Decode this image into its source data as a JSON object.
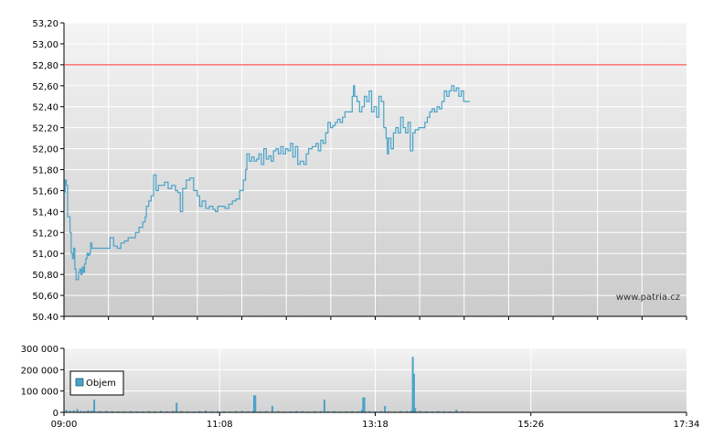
{
  "chart_data": [
    {
      "type": "line",
      "name": "price",
      "y_ticks": [
        "53,20",
        "53,00",
        "52,80",
        "52,60",
        "52,40",
        "52,20",
        "52,00",
        "51,80",
        "51,60",
        "51,40",
        "51,20",
        "51,00",
        "50,80",
        "50,60",
        "50.40"
      ],
      "y_values": [
        53.2,
        53.0,
        52.8,
        52.6,
        52.4,
        52.2,
        52.0,
        51.8,
        51.6,
        51.4,
        51.2,
        51.0,
        50.8,
        50.6,
        50.4
      ],
      "ylim": [
        50.4,
        53.2
      ],
      "xlim_minutes": [
        540,
        1054
      ],
      "reference_line": {
        "value": 52.8,
        "color": "#ff3333"
      },
      "line_color": "#4aa3c8",
      "grid": true,
      "watermark": "www.patria.cz",
      "points": [
        [
          540,
          51.58
        ],
        [
          541,
          51.7
        ],
        [
          542,
          51.65
        ],
        [
          543,
          51.35
        ],
        [
          544,
          51.35
        ],
        [
          545,
          51.2
        ],
        [
          546,
          51.0
        ],
        [
          547,
          50.95
        ],
        [
          548,
          51.05
        ],
        [
          549,
          50.85
        ],
        [
          550,
          50.75
        ],
        [
          551,
          50.75
        ],
        [
          552,
          50.82
        ],
        [
          553,
          50.85
        ],
        [
          554,
          50.8
        ],
        [
          555,
          50.87
        ],
        [
          556,
          50.82
        ],
        [
          557,
          50.9
        ],
        [
          558,
          50.95
        ],
        [
          559,
          51.0
        ],
        [
          560,
          50.98
        ],
        [
          561,
          51.0
        ],
        [
          562,
          51.1
        ],
        [
          563,
          51.05
        ],
        [
          566,
          51.05
        ],
        [
          570,
          51.05
        ],
        [
          575,
          51.05
        ],
        [
          578,
          51.15
        ],
        [
          581,
          51.07
        ],
        [
          584,
          51.05
        ],
        [
          587,
          51.1
        ],
        [
          590,
          51.12
        ],
        [
          593,
          51.15
        ],
        [
          596,
          51.15
        ],
        [
          599,
          51.2
        ],
        [
          602,
          51.25
        ],
        [
          605,
          51.3
        ],
        [
          607,
          51.35
        ],
        [
          608,
          51.45
        ],
        [
          610,
          51.5
        ],
        [
          612,
          51.55
        ],
        [
          614,
          51.75
        ],
        [
          616,
          51.6
        ],
        [
          618,
          51.65
        ],
        [
          620,
          51.65
        ],
        [
          623,
          51.68
        ],
        [
          626,
          51.62
        ],
        [
          629,
          51.65
        ],
        [
          632,
          51.6
        ],
        [
          634,
          51.58
        ],
        [
          636,
          51.4
        ],
        [
          638,
          51.62
        ],
        [
          641,
          51.7
        ],
        [
          644,
          51.72
        ],
        [
          647,
          51.6
        ],
        [
          650,
          51.55
        ],
        [
          652,
          51.45
        ],
        [
          654,
          51.5
        ],
        [
          657,
          51.43
        ],
        [
          660,
          51.45
        ],
        [
          663,
          51.42
        ],
        [
          665,
          51.4
        ],
        [
          667,
          51.45
        ],
        [
          670,
          51.45
        ],
        [
          673,
          51.43
        ],
        [
          676,
          51.47
        ],
        [
          679,
          51.5
        ],
        [
          682,
          51.52
        ],
        [
          685,
          51.6
        ],
        [
          688,
          51.7
        ],
        [
          690,
          51.8
        ],
        [
          691,
          51.95
        ],
        [
          693,
          51.88
        ],
        [
          695,
          51.92
        ],
        [
          697,
          51.88
        ],
        [
          699,
          51.9
        ],
        [
          701,
          51.95
        ],
        [
          703,
          51.85
        ],
        [
          705,
          52.0
        ],
        [
          707,
          51.9
        ],
        [
          709,
          51.93
        ],
        [
          711,
          51.88
        ],
        [
          713,
          51.98
        ],
        [
          715,
          52.0
        ],
        [
          717,
          51.95
        ],
        [
          719,
          52.02
        ],
        [
          721,
          51.95
        ],
        [
          723,
          52.0
        ],
        [
          725,
          51.98
        ],
        [
          727,
          52.05
        ],
        [
          729,
          51.92
        ],
        [
          731,
          52.02
        ],
        [
          733,
          51.85
        ],
        [
          735,
          51.88
        ],
        [
          738,
          51.85
        ],
        [
          740,
          51.95
        ],
        [
          742,
          52.0
        ],
        [
          745,
          52.02
        ],
        [
          748,
          52.05
        ],
        [
          750,
          51.98
        ],
        [
          752,
          52.08
        ],
        [
          754,
          52.05
        ],
        [
          756,
          52.15
        ],
        [
          758,
          52.25
        ],
        [
          760,
          52.2
        ],
        [
          762,
          52.22
        ],
        [
          764,
          52.25
        ],
        [
          766,
          52.28
        ],
        [
          768,
          52.25
        ],
        [
          770,
          52.3
        ],
        [
          772,
          52.35
        ],
        [
          774,
          52.35
        ],
        [
          776,
          52.35
        ],
        [
          778,
          52.5
        ],
        [
          779,
          52.6
        ],
        [
          780,
          52.5
        ],
        [
          782,
          52.45
        ],
        [
          784,
          52.35
        ],
        [
          786,
          52.4
        ],
        [
          788,
          52.5
        ],
        [
          790,
          52.45
        ],
        [
          792,
          52.55
        ],
        [
          794,
          52.35
        ],
        [
          796,
          52.4
        ],
        [
          798,
          52.3
        ],
        [
          800,
          52.5
        ],
        [
          802,
          52.45
        ],
        [
          804,
          52.2
        ],
        [
          806,
          52.1
        ],
        [
          807,
          51.95
        ],
        [
          808,
          52.1
        ],
        [
          810,
          52.0
        ],
        [
          812,
          52.15
        ],
        [
          814,
          52.2
        ],
        [
          816,
          52.15
        ],
        [
          818,
          52.3
        ],
        [
          820,
          52.2
        ],
        [
          822,
          52.15
        ],
        [
          824,
          52.25
        ],
        [
          826,
          51.98
        ],
        [
          828,
          52.15
        ],
        [
          830,
          52.18
        ],
        [
          833,
          52.2
        ],
        [
          836,
          52.2
        ],
        [
          838,
          52.25
        ],
        [
          840,
          52.3
        ],
        [
          842,
          52.35
        ],
        [
          844,
          52.38
        ],
        [
          846,
          52.35
        ],
        [
          848,
          52.4
        ],
        [
          850,
          52.38
        ],
        [
          852,
          52.45
        ],
        [
          854,
          52.55
        ],
        [
          856,
          52.5
        ],
        [
          858,
          52.55
        ],
        [
          860,
          52.6
        ],
        [
          862,
          52.55
        ],
        [
          864,
          52.58
        ],
        [
          866,
          52.5
        ],
        [
          868,
          52.55
        ],
        [
          870,
          52.45
        ],
        [
          875,
          52.45
        ]
      ]
    },
    {
      "type": "bar",
      "name": "volume",
      "legend": "Objem",
      "y_ticks": [
        "300 000",
        "200 000",
        "100 000",
        "0"
      ],
      "ylim": [
        0,
        300000
      ],
      "x_ticks": [
        "09:00",
        "11:08",
        "13:18",
        "15:26",
        "17:34"
      ],
      "bar_color": "#4aa3c8",
      "grid": true,
      "bars": [
        [
          542,
          12000
        ],
        [
          545,
          8000
        ],
        [
          548,
          9000
        ],
        [
          551,
          15000
        ],
        [
          554,
          7000
        ],
        [
          557,
          6000
        ],
        [
          560,
          10000
        ],
        [
          563,
          8000
        ],
        [
          565,
          60000
        ],
        [
          570,
          6000
        ],
        [
          575,
          7000
        ],
        [
          580,
          5000
        ],
        [
          585,
          4000
        ],
        [
          590,
          5000
        ],
        [
          595,
          6000
        ],
        [
          600,
          5000
        ],
        [
          605,
          4000
        ],
        [
          610,
          6000
        ],
        [
          615,
          5000
        ],
        [
          620,
          7000
        ],
        [
          625,
          5000
        ],
        [
          630,
          6000
        ],
        [
          633,
          45000
        ],
        [
          637,
          6000
        ],
        [
          642,
          5000
        ],
        [
          647,
          4000
        ],
        [
          652,
          6000
        ],
        [
          657,
          8000
        ],
        [
          662,
          5000
        ],
        [
          667,
          6000
        ],
        [
          672,
          5000
        ],
        [
          677,
          4000
        ],
        [
          682,
          6000
        ],
        [
          687,
          7000
        ],
        [
          692,
          5000
        ],
        [
          696,
          6000
        ],
        [
          697,
          80000
        ],
        [
          698,
          80000
        ],
        [
          702,
          5000
        ],
        [
          707,
          6000
        ],
        [
          712,
          30000
        ],
        [
          717,
          6000
        ],
        [
          722,
          4000
        ],
        [
          727,
          5000
        ],
        [
          732,
          6000
        ],
        [
          737,
          5000
        ],
        [
          742,
          4000
        ],
        [
          747,
          6000
        ],
        [
          752,
          5000
        ],
        [
          755,
          60000
        ],
        [
          758,
          5000
        ],
        [
          763,
          6000
        ],
        [
          768,
          4000
        ],
        [
          773,
          5000
        ],
        [
          778,
          6000
        ],
        [
          783,
          5000
        ],
        [
          786,
          12000
        ],
        [
          787,
          70000
        ],
        [
          788,
          70000
        ],
        [
          792,
          5000
        ],
        [
          797,
          4000
        ],
        [
          802,
          6000
        ],
        [
          805,
          30000
        ],
        [
          808,
          5000
        ],
        [
          813,
          4000
        ],
        [
          818,
          6000
        ],
        [
          823,
          5000
        ],
        [
          827,
          8000
        ],
        [
          828,
          260000
        ],
        [
          829,
          180000
        ],
        [
          830,
          20000
        ],
        [
          834,
          6000
        ],
        [
          839,
          5000
        ],
        [
          844,
          4000
        ],
        [
          849,
          6000
        ],
        [
          854,
          5000
        ],
        [
          859,
          4000
        ],
        [
          864,
          12000
        ],
        [
          869,
          5000
        ],
        [
          874,
          4000
        ]
      ]
    }
  ]
}
